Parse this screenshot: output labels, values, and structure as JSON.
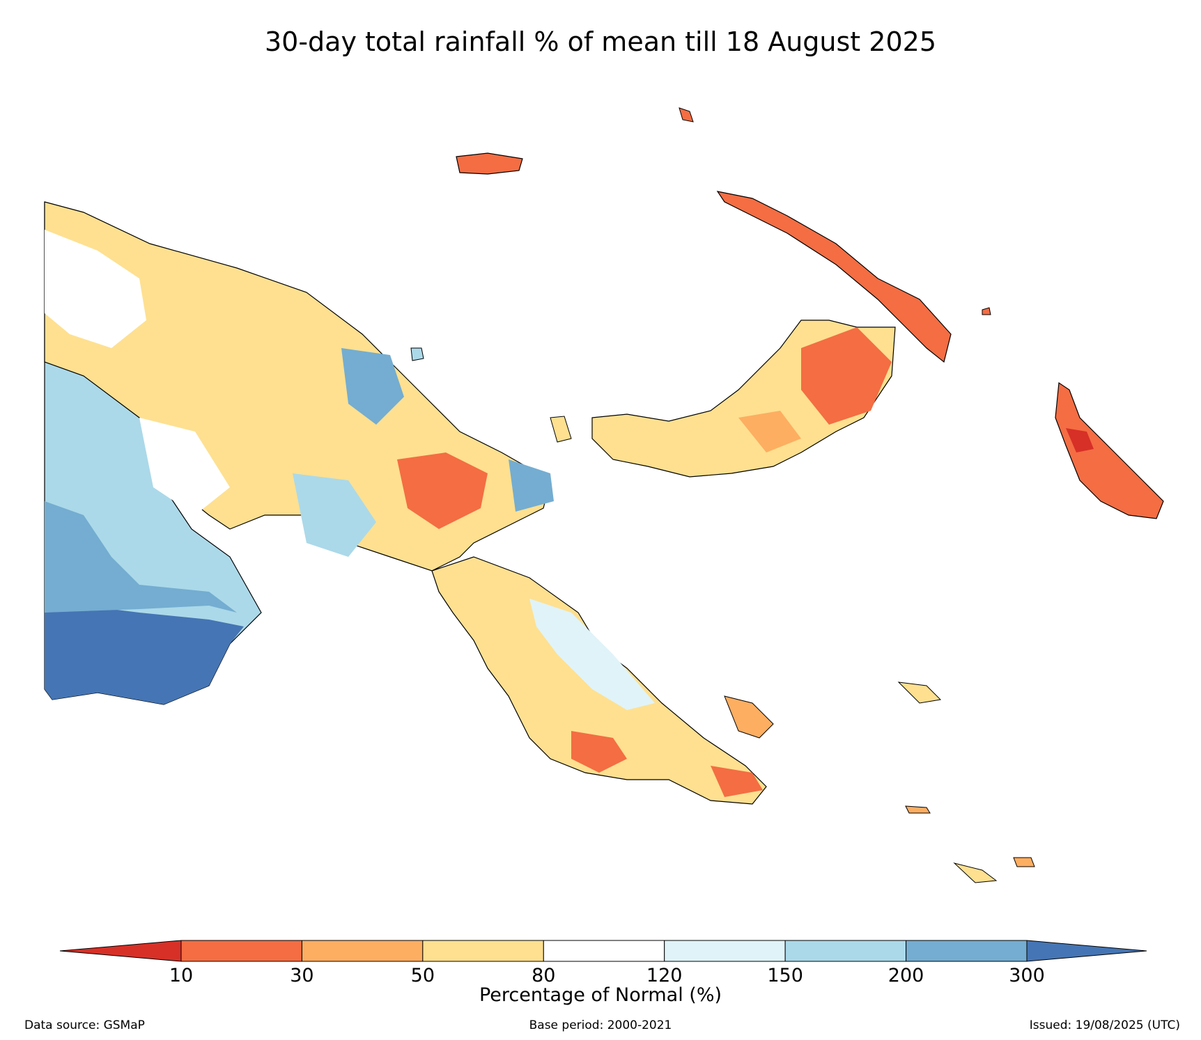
{
  "title": "30-day total rainfall % of mean till 18 August 2025",
  "colorbar": {
    "label": "Percentage of Normal (%)",
    "ticks": [
      "10",
      "30",
      "50",
      "80",
      "120",
      "150",
      "200",
      "300"
    ],
    "colors": [
      "#d73027",
      "#f46d43",
      "#fdae61",
      "#fee090",
      "#ffffff",
      "#e0f3f8",
      "#abd9e9",
      "#74add1",
      "#4575b4"
    ]
  },
  "footer": {
    "source": "Data source: GSMaP",
    "base_period": "Base period: 2000-2021",
    "issued": "Issued: 19/08/2025 (UTC)"
  }
}
